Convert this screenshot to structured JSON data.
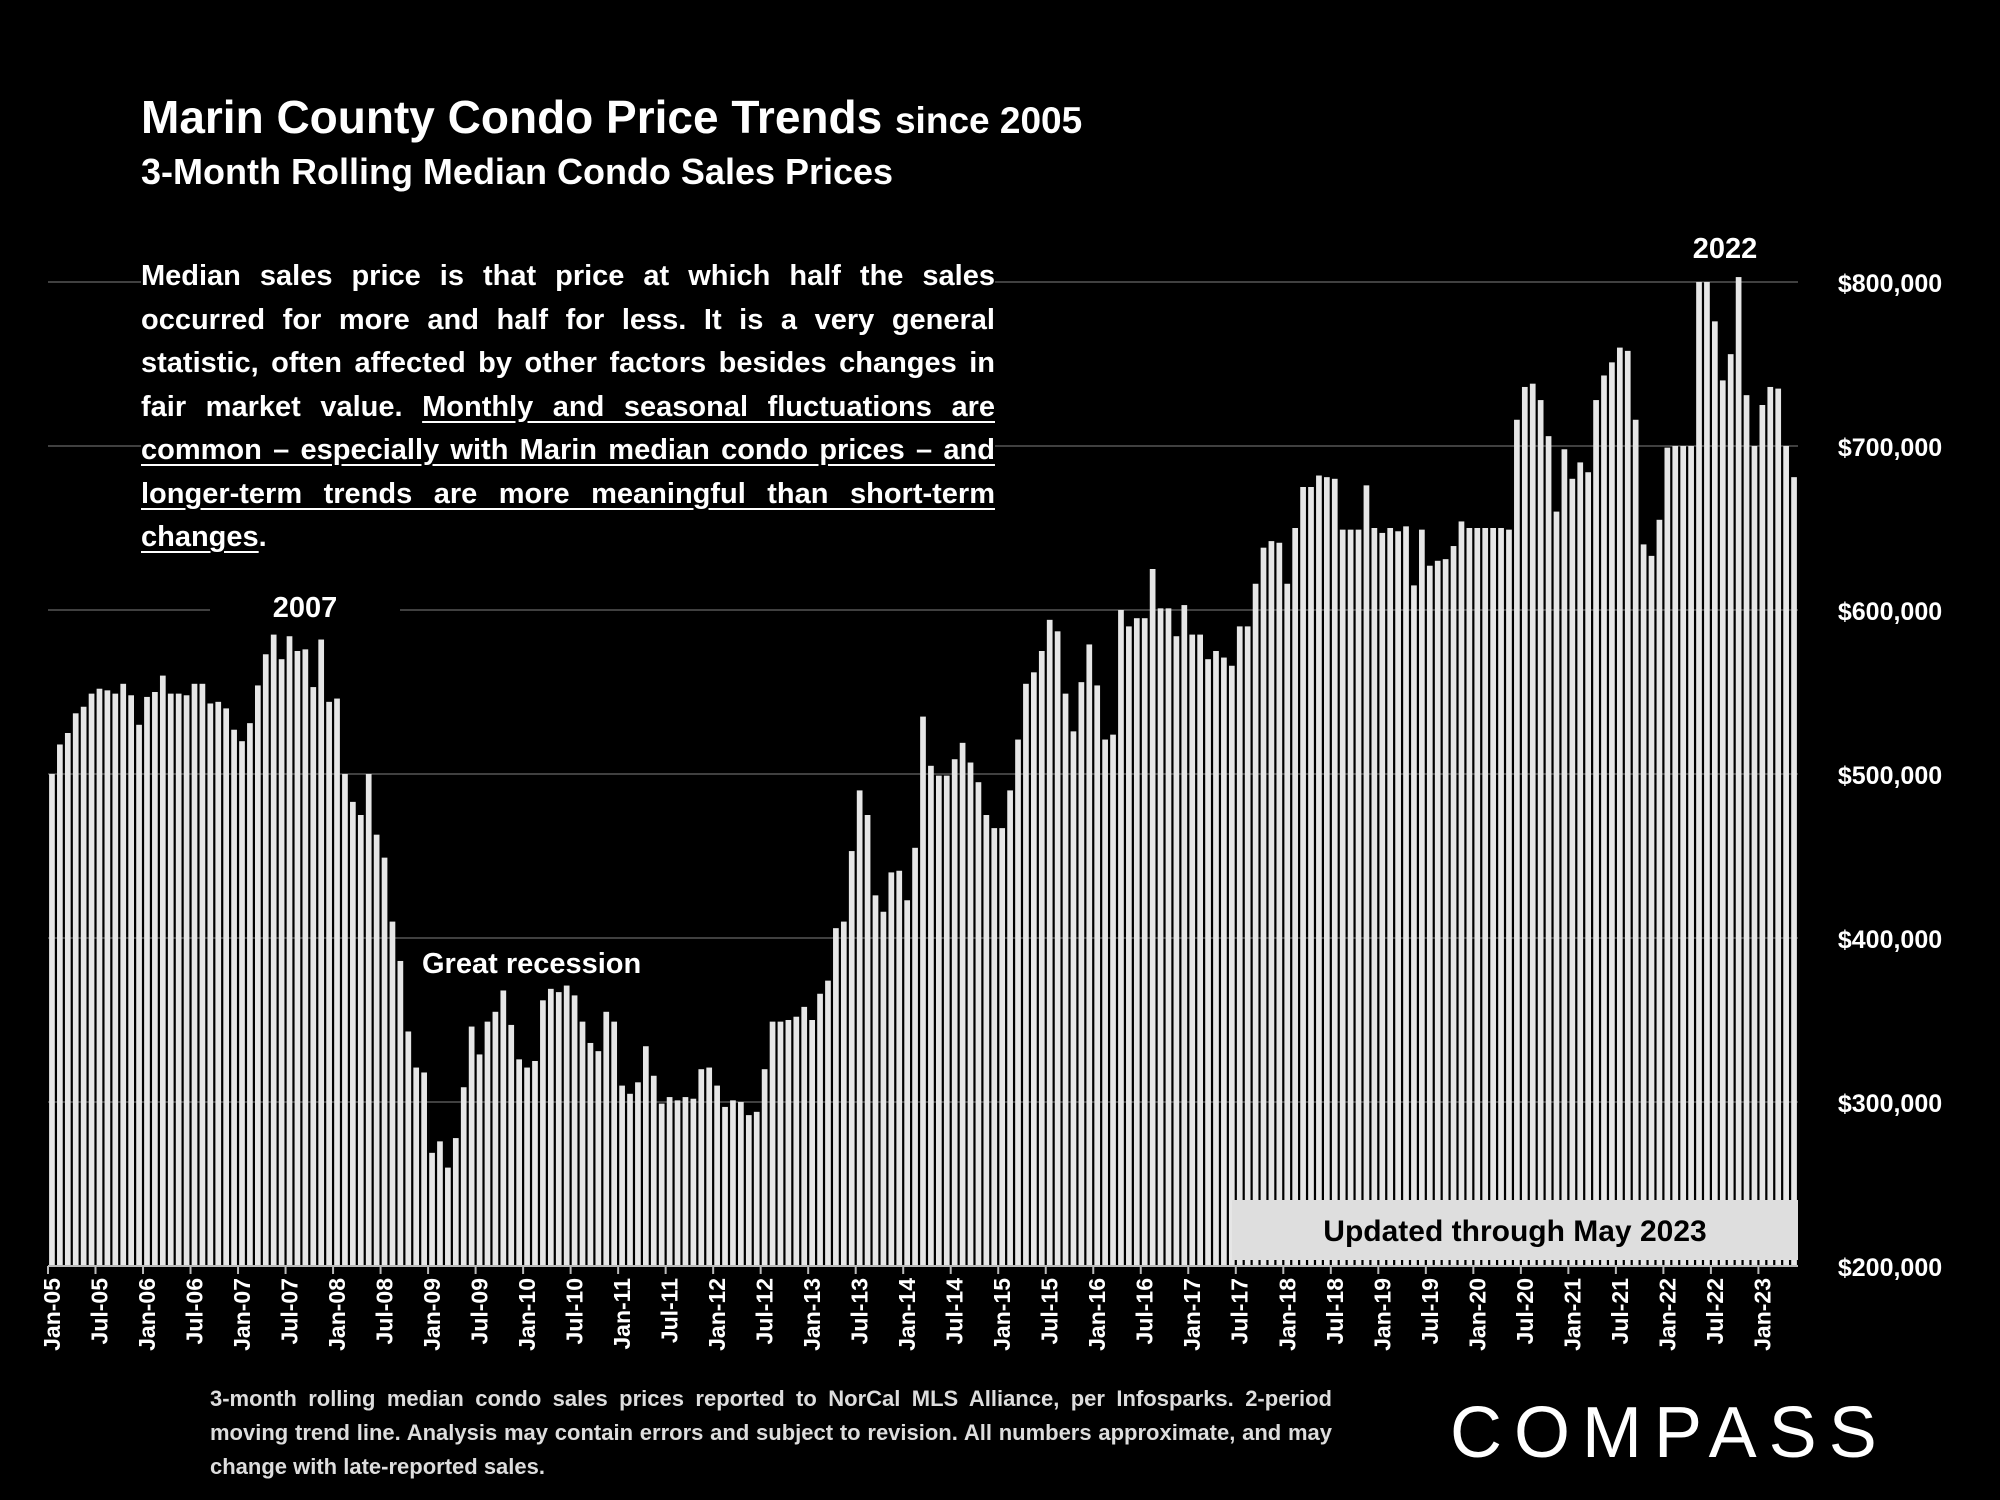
{
  "header": {
    "title_main": "Marin County Condo Price Trends",
    "title_suffix": "since 2005",
    "subtitle": "3-Month Rolling Median Condo Sales Prices"
  },
  "description": {
    "plain": "Median sales price is that price at which half the sales occurred for more and half for less. It is a very general statistic, often affected by other factors besides changes in fair market value.",
    "underlined": "Monthly and seasonal fluctuations are common – especially with Marin median condo prices – and longer-term trends are more meaningful than short-term changes",
    "trailing": "."
  },
  "updated_label": "Updated through May 2023",
  "footnote": "3-month rolling median condo sales prices reported to NorCal MLS Alliance, per Infosparks. 2-period moving trend line. Analysis may contain errors and subject to revision. All numbers approximate, and may change with late-reported sales.",
  "logo_text": "COMPASS",
  "colors": {
    "background": "#000000",
    "bar": "#e6e6e6",
    "text": "#ffffff",
    "grid": "#555555"
  },
  "chart_data": {
    "type": "bar",
    "title": "",
    "xlabel": "",
    "ylabel": "",
    "ylim": [
      200000,
      800000
    ],
    "y_ticks": [
      {
        "value": 800000,
        "label": "$800,000"
      },
      {
        "value": 700000,
        "label": "$700,000"
      },
      {
        "value": 600000,
        "label": "$600,000"
      },
      {
        "value": 500000,
        "label": "$500,000"
      },
      {
        "value": 400000,
        "label": "$400,000"
      },
      {
        "value": 300000,
        "label": "$300,000"
      },
      {
        "value": 200000,
        "label": "$200,000"
      }
    ],
    "y_axis_position": "right",
    "grid": true,
    "x_start": "Jan-05",
    "x_end": "May-23",
    "x_tick_labels": [
      "Jan-05",
      "Jul-05",
      "Jan-06",
      "Jul-06",
      "Jan-07",
      "Jul-07",
      "Jan-08",
      "Jul-08",
      "Jan-09",
      "Jul-09",
      "Jan-10",
      "Jul-10",
      "Jan-11",
      "Jul-11",
      "Jan-12",
      "Jul-12",
      "Jan-13",
      "Jul-13",
      "Jan-14",
      "Jul-14",
      "Jan-15",
      "Jul-15",
      "Jan-16",
      "Jul-16",
      "Jan-17",
      "Jul-17",
      "Jan-18",
      "Jul-18",
      "Jan-19",
      "Jul-19",
      "Jan-20",
      "Jul-20",
      "Jan-21",
      "Jul-21",
      "Jan-22",
      "Jul-22",
      "Jan-23"
    ],
    "values": [
      500000,
      518000,
      525000,
      537000,
      541000,
      549000,
      552000,
      551000,
      549000,
      555000,
      548000,
      530000,
      547000,
      550000,
      560000,
      549000,
      549000,
      548000,
      555000,
      555000,
      543000,
      544000,
      540000,
      527000,
      520000,
      531000,
      554000,
      573000,
      585000,
      570000,
      584000,
      575000,
      576000,
      553000,
      582000,
      544000,
      546000,
      500000,
      483000,
      475000,
      500000,
      463000,
      449000,
      410000,
      386000,
      343000,
      321000,
      318000,
      269000,
      276000,
      260000,
      278000,
      309000,
      346000,
      329000,
      349000,
      355000,
      368000,
      347000,
      326000,
      321000,
      325000,
      362000,
      369000,
      367000,
      371000,
      365000,
      349000,
      336000,
      331000,
      355000,
      349000,
      310000,
      305000,
      312000,
      334000,
      316000,
      299000,
      303000,
      301000,
      303000,
      302000,
      320000,
      321000,
      310000,
      297000,
      301000,
      300000,
      292000,
      294000,
      320000,
      349000,
      349000,
      350000,
      352000,
      358000,
      350000,
      366000,
      374000,
      406000,
      410000,
      453000,
      490000,
      475000,
      426000,
      416000,
      440000,
      441000,
      423000,
      455000,
      535000,
      505000,
      499000,
      499000,
      509000,
      519000,
      507000,
      495000,
      475000,
      467000,
      467000,
      490000,
      521000,
      555000,
      562000,
      575000,
      594000,
      587000,
      549000,
      526000,
      556000,
      579000,
      554000,
      521000,
      524000,
      600000,
      590000,
      595000,
      595000,
      625000,
      601000,
      601000,
      584000,
      603000,
      585000,
      585000,
      570000,
      575000,
      571000,
      566000,
      590000,
      590000,
      616000,
      638000,
      642000,
      641000,
      616000,
      650000,
      675000,
      675000,
      682000,
      681000,
      680000,
      649000,
      649000,
      649000,
      676000,
      650000,
      647000,
      650000,
      648000,
      651000,
      615000,
      649000,
      627000,
      630000,
      631000,
      639000,
      654000,
      650000,
      650000,
      650000,
      650000,
      650000,
      649000,
      716000,
      736000,
      738000,
      728000,
      706000,
      660000,
      698000,
      680000,
      690000,
      684000,
      728000,
      743000,
      751000,
      760000,
      758000,
      716000,
      640000,
      633000,
      655000,
      699000,
      700000,
      700000,
      700000,
      800000,
      800000,
      776000,
      740000,
      756000,
      803000,
      731000,
      700000,
      725000,
      736000,
      735000,
      700000,
      681000
    ],
    "annotations": [
      {
        "text": "2007"
      },
      {
        "text": "Great recession"
      },
      {
        "text": "2022"
      }
    ]
  }
}
